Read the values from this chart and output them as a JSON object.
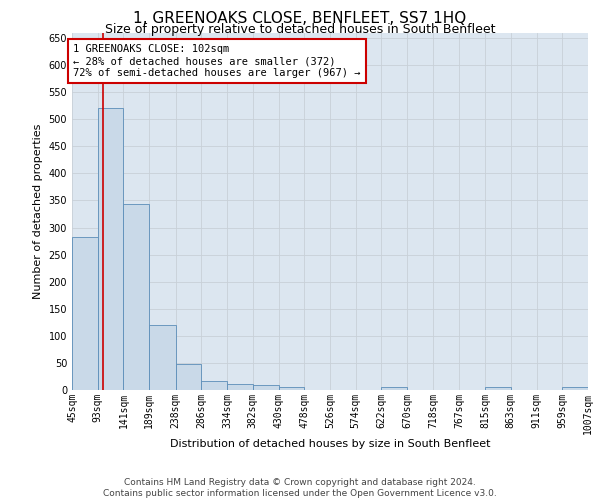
{
  "title": "1, GREENOAKS CLOSE, BENFLEET, SS7 1HQ",
  "subtitle": "Size of property relative to detached houses in South Benfleet",
  "xlabel": "Distribution of detached houses by size in South Benfleet",
  "ylabel": "Number of detached properties",
  "footer_line1": "Contains HM Land Registry data © Crown copyright and database right 2024.",
  "footer_line2": "Contains public sector information licensed under the Open Government Licence v3.0.",
  "annotation_line1": "1 GREENOAKS CLOSE: 102sqm",
  "annotation_line2": "← 28% of detached houses are smaller (372)",
  "annotation_line3": "72% of semi-detached houses are larger (967) →",
  "property_size": 102,
  "bar_edges": [
    45,
    93,
    141,
    189,
    238,
    286,
    334,
    382,
    430,
    478,
    526,
    574,
    622,
    670,
    718,
    767,
    815,
    863,
    911,
    959,
    1007
  ],
  "bar_labels": [
    "45sqm",
    "93sqm",
    "141sqm",
    "189sqm",
    "238sqm",
    "286sqm",
    "334sqm",
    "382sqm",
    "430sqm",
    "478sqm",
    "526sqm",
    "574sqm",
    "622sqm",
    "670sqm",
    "718sqm",
    "767sqm",
    "815sqm",
    "863sqm",
    "911sqm",
    "959sqm",
    "1007sqm"
  ],
  "bar_values": [
    283,
    521,
    344,
    120,
    48,
    17,
    12,
    9,
    6,
    0,
    0,
    0,
    5,
    0,
    0,
    0,
    5,
    0,
    0,
    5
  ],
  "bar_color": "#c9d9e8",
  "bar_edge_color": "#5b8db8",
  "red_line_color": "#cc0000",
  "grid_color": "#c8d0d8",
  "annotation_box_color": "#cc0000",
  "bg_color": "#dce6f0",
  "ylim": [
    0,
    660
  ],
  "yticks": [
    0,
    50,
    100,
    150,
    200,
    250,
    300,
    350,
    400,
    450,
    500,
    550,
    600,
    650
  ],
  "title_fontsize": 11,
  "subtitle_fontsize": 9,
  "axis_label_fontsize": 8,
  "tick_fontsize": 7,
  "footer_fontsize": 6.5,
  "annotation_fontsize": 7.5
}
